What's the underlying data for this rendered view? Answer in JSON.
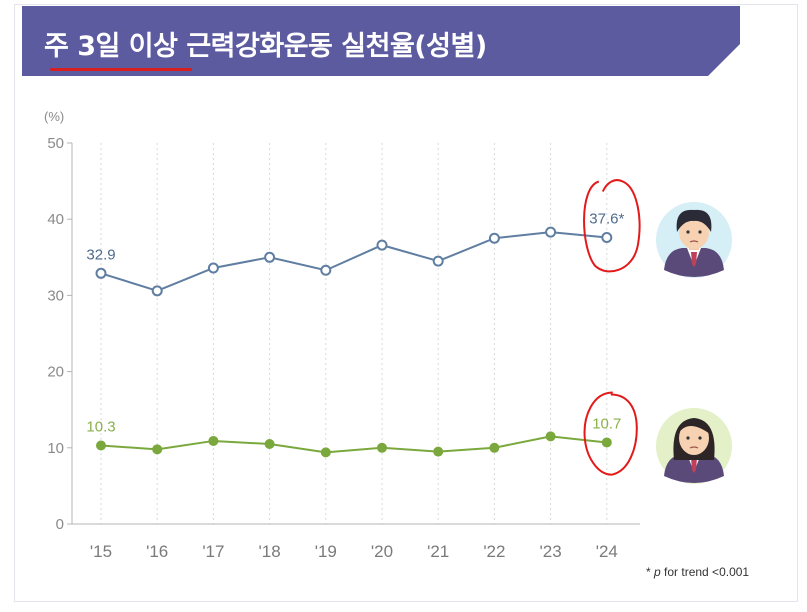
{
  "title": "주 3일 이상 근력강화운동 실천율(성별)",
  "footnote": {
    "marker": "* ",
    "p_symbol": "p",
    "text": " for trend <0.001"
  },
  "colors": {
    "banner": "#5d5ba0",
    "male_line": "#5f7ea1",
    "female_line": "#7aa83d",
    "female_label": "#8ab04a",
    "annotation": "#e21a1a"
  },
  "icons": {
    "male": "male-student-icon",
    "female": "female-student-icon"
  },
  "chart_data": {
    "type": "line",
    "unit_label": "(%)",
    "x": [
      "'15",
      "'16",
      "'17",
      "'18",
      "'19",
      "'20",
      "'21",
      "'22",
      "'23",
      "'24"
    ],
    "ylim": [
      0,
      50
    ],
    "yticks": [
      0,
      10,
      20,
      30,
      40,
      50
    ],
    "grid": "vertical dotted",
    "series": [
      {
        "key": "male",
        "values": [
          32.9,
          30.6,
          33.6,
          35.0,
          33.3,
          36.6,
          34.5,
          37.5,
          38.3,
          37.6
        ],
        "labels": {
          "0": "32.9",
          "9": "37.6*"
        },
        "marker": "hollow"
      },
      {
        "key": "female",
        "values": [
          10.3,
          9.8,
          10.9,
          10.5,
          9.4,
          10.0,
          9.5,
          10.0,
          11.5,
          10.7
        ],
        "labels": {
          "0": "10.3",
          "9": "10.7"
        },
        "marker": "filled"
      }
    ]
  }
}
